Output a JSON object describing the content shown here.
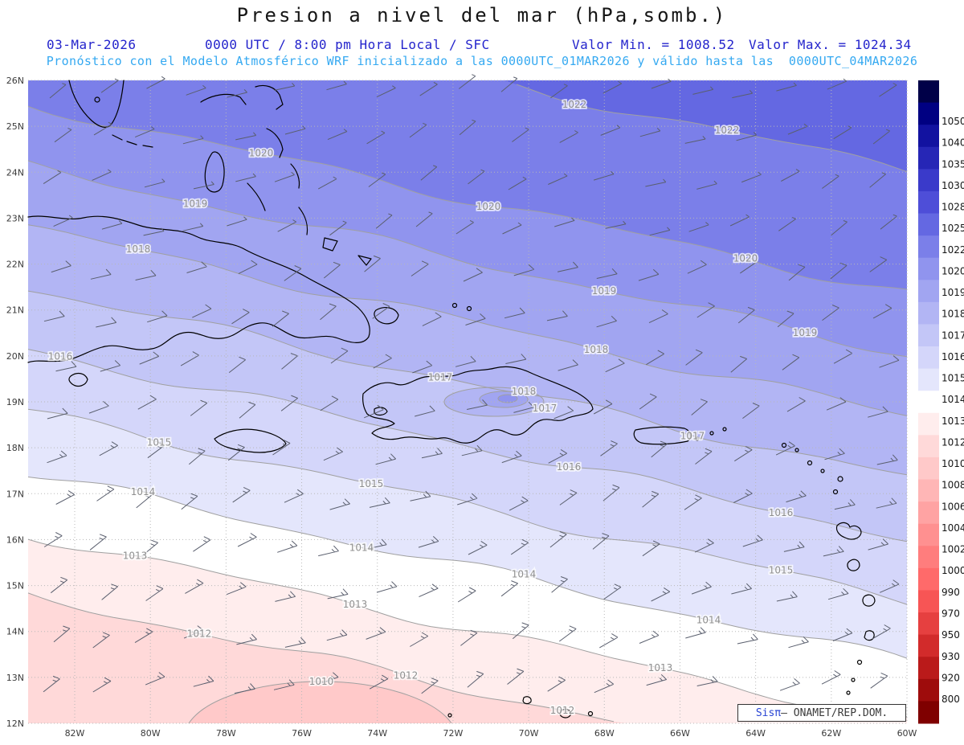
{
  "header": {
    "title": "Presion a nivel del mar (hPa,somb.)",
    "date": "03-Mar-2026",
    "time_info": "0000 UTC / 8:00 pm Hora Local / SFC",
    "min_label": "Valor Min. = 1008.52",
    "max_label": "Valor Max. = 1024.34",
    "forecast_line": "Pronóstico con el Modelo Atmosférico WRF inicializado a las 0000UTC_01MAR2026 y válido hasta las  0000UTC_04MAR2026"
  },
  "watermark": {
    "brand": "Sis",
    "pi": "π",
    "credit": "– ONAMET/REP.DOM."
  },
  "chart_data": {
    "type": "heatmap",
    "variable": "Presion a nivel del mar (hPa, sombreado)",
    "valid_date": "03-Mar-2026",
    "valid_time": "0000 UTC / 8:00 pm Hora Local / SFC",
    "value_min": 1008.52,
    "value_max": 1024.34,
    "lat_ticks": [
      "26N",
      "25N",
      "24N",
      "23N",
      "22N",
      "21N",
      "20N",
      "19N",
      "18N",
      "17N",
      "16N",
      "15N",
      "14N",
      "13N",
      "12N"
    ],
    "lon_ticks": [
      "82W",
      "80W",
      "78W",
      "76W",
      "74W",
      "72W",
      "70W",
      "68W",
      "66W",
      "64W",
      "62W",
      "60W"
    ],
    "grid": "dotted",
    "legend_position": "right-colorbar",
    "contour_levels": [
      1010,
      1012,
      1013,
      1014,
      1015,
      1016,
      1017,
      1018,
      1019,
      1020,
      1022
    ],
    "closed_high_labels": [
      1018,
      1017
    ],
    "low_center_label": 1010,
    "pressure_gradient": {
      "northeast_hPa": 1024,
      "southwest_hPa": 1009,
      "description": "high pressure (blue shading) to the northeast decreasing to low pressure (pink/red shading) to the southwest"
    },
    "wind_barbs": "easterly trade-wind barbs 5-15 kt over the whole domain",
    "coastlines_visible": [
      "Florida",
      "Bahamas",
      "Cuba",
      "Jamaica",
      "Hispaniola",
      "Puerto Rico",
      "Lesser Antilles",
      "ABC Islands"
    ],
    "colorbar_labels": [
      "1050",
      "1040",
      "1035",
      "1030",
      "1028",
      "1025",
      "1022",
      "1020",
      "1019",
      "1018",
      "1017",
      "1016",
      "1015",
      "1014",
      "1013",
      "1012",
      "1010",
      "1008",
      "1006",
      "1004",
      "1002",
      "1000",
      "990",
      "970",
      "950",
      "930",
      "920",
      "800"
    ],
    "colorbar_colors": [
      "#000048",
      "#000082",
      "#1212a0",
      "#2626b6",
      "#3a3aca",
      "#4e4ed8",
      "#6468e2",
      "#7b7fe9",
      "#9094ee",
      "#a1a5f1",
      "#b2b5f4",
      "#c3c6f7",
      "#d4d6fa",
      "#e4e6fc",
      "#ffffff",
      "#ffeded",
      "#ffd9d9",
      "#ffc9c9",
      "#ffb6b6",
      "#ffa3a3",
      "#ff9090",
      "#ff7d7d",
      "#ff6a6a",
      "#f75555",
      "#e64040",
      "#d22b2b",
      "#ba1a1a",
      "#9e0c0c",
      "#7f0000"
    ]
  }
}
